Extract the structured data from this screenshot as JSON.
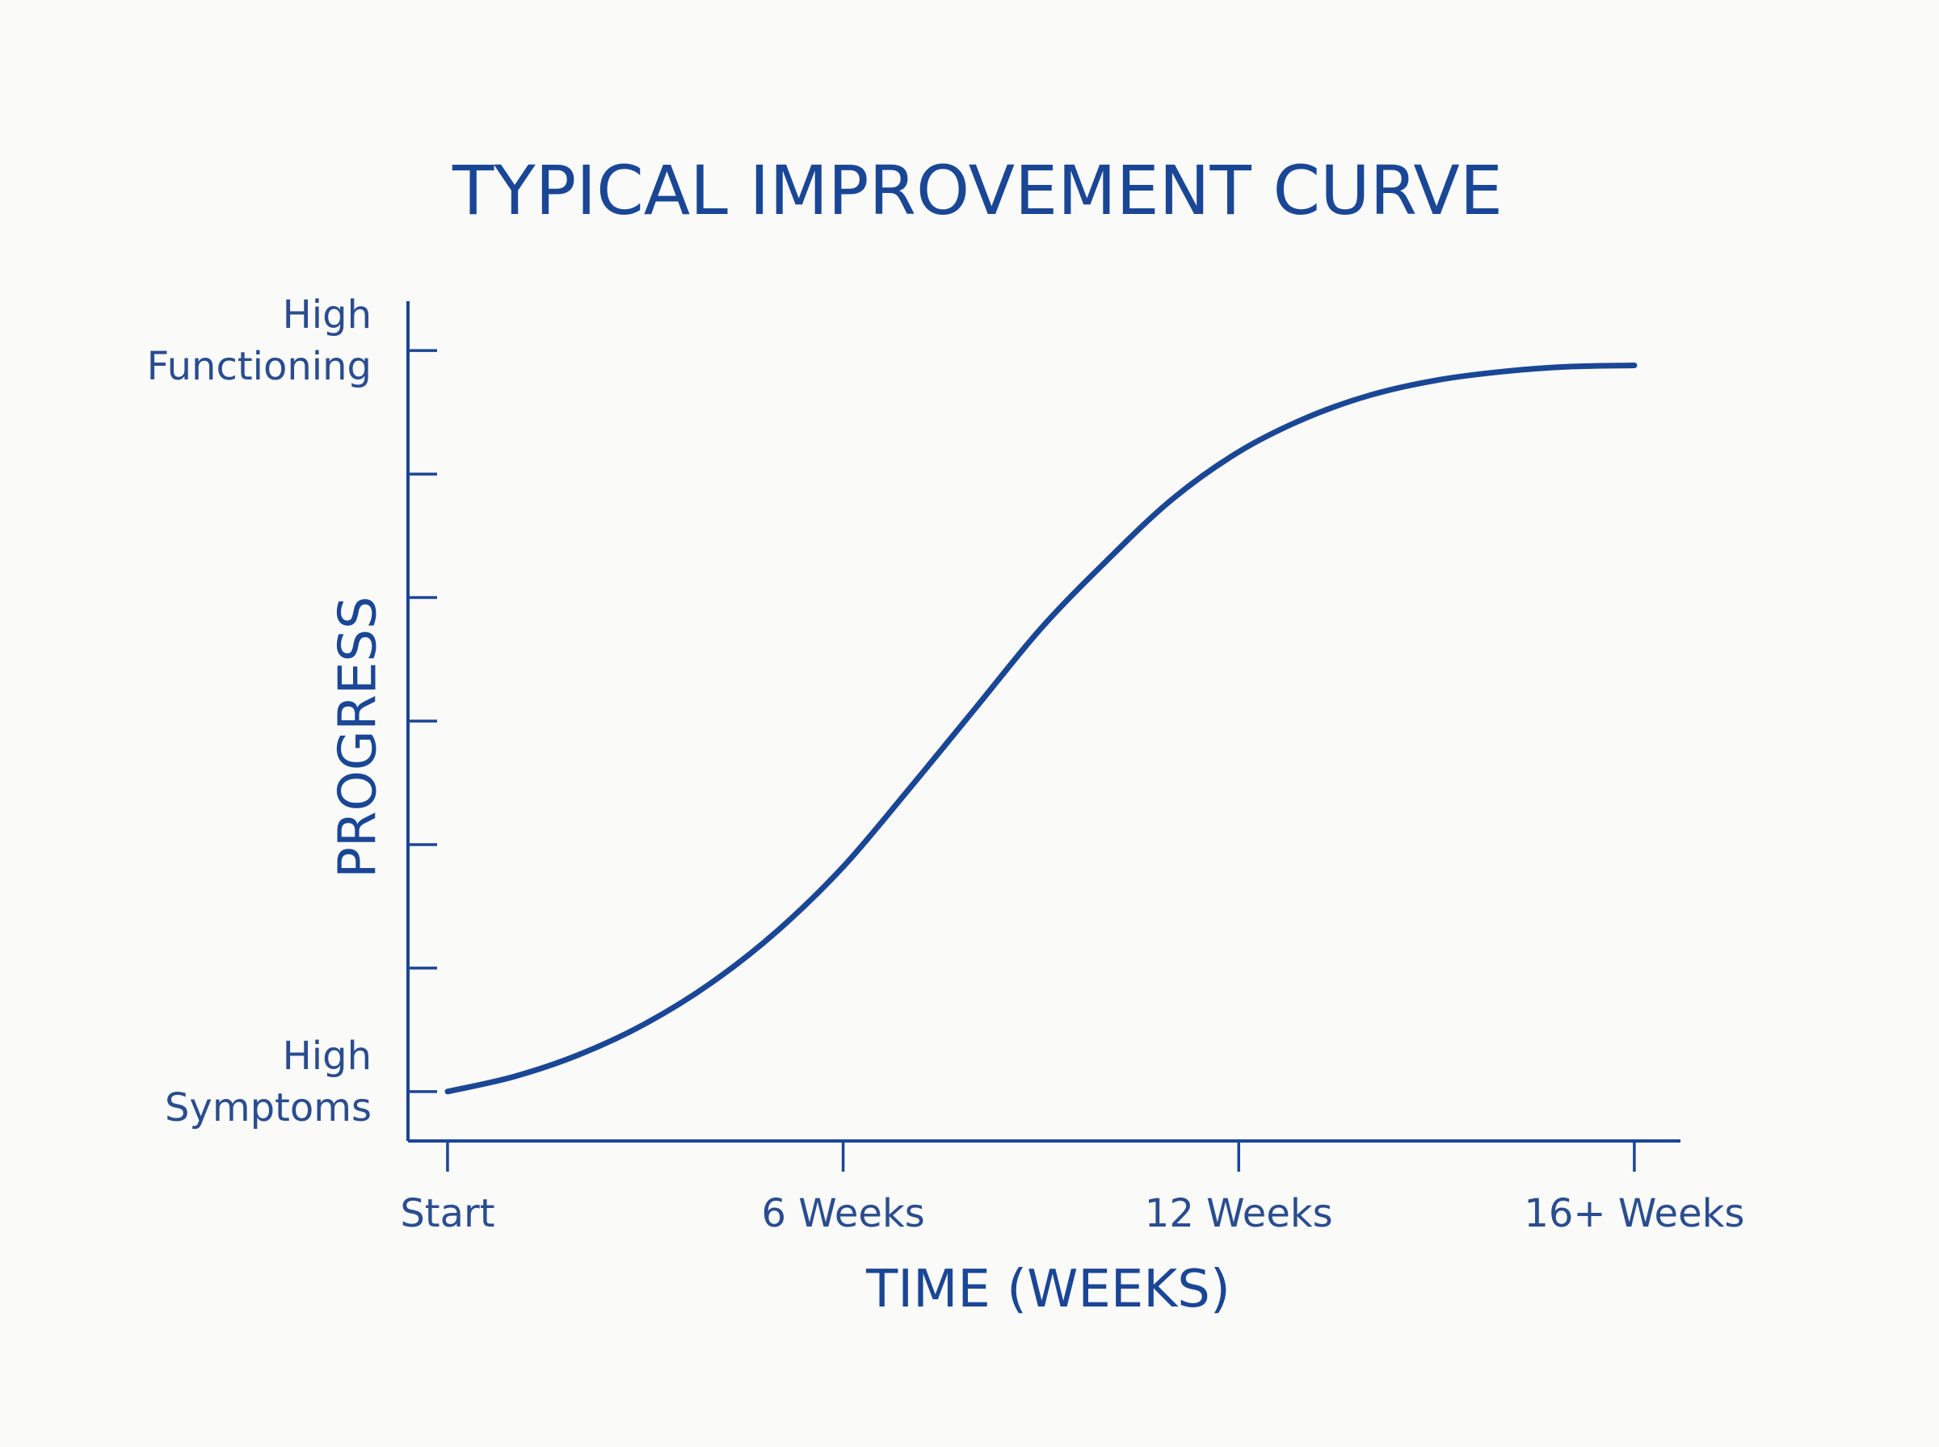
{
  "chart_data": {
    "type": "line",
    "title": "TYPICAL IMPROVEMENT CURVE",
    "xlabel": "TIME (WEEKS)",
    "ylabel": "PROGRESS",
    "categories": [
      "Start",
      "6 Weeks",
      "12 Weeks",
      "16+ Weeks"
    ],
    "x_ticks": [
      0,
      6,
      12,
      18
    ],
    "x_range": [
      -0.6,
      18.7
    ],
    "y_range": [
      -0.4,
      6.4
    ],
    "y_ticks": [
      0,
      1,
      2,
      3,
      4,
      5,
      6
    ],
    "y_tick_labels": [
      {
        "value": 0,
        "lines": [
          "High",
          "Symptoms"
        ]
      },
      {
        "value": 6,
        "lines": [
          "High",
          "Functioning"
        ]
      }
    ],
    "series": [
      {
        "name": "Progress",
        "color": "#1a4696",
        "x": [
          0,
          1,
          2,
          3,
          4,
          5,
          6,
          7,
          8,
          9,
          10,
          11,
          12,
          13,
          14,
          15,
          16,
          17,
          18
        ],
        "y": [
          0.0,
          0.12,
          0.3,
          0.55,
          0.88,
          1.3,
          1.82,
          2.45,
          3.1,
          3.75,
          4.3,
          4.8,
          5.18,
          5.45,
          5.64,
          5.76,
          5.83,
          5.87,
          5.88
        ]
      }
    ],
    "grid": false,
    "legend": "none"
  }
}
